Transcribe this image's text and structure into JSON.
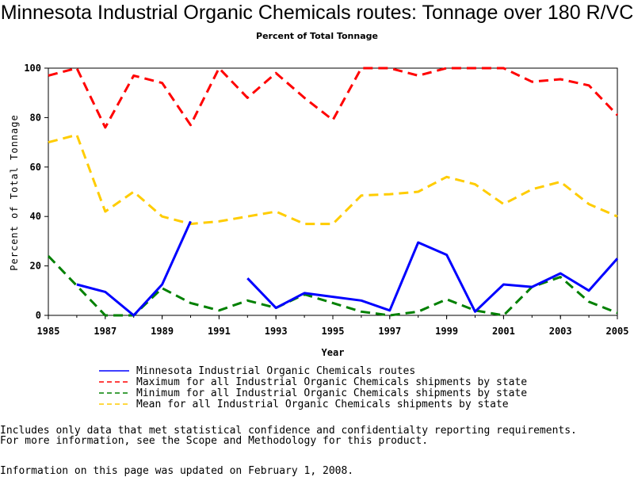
{
  "chart_data": {
    "type": "line",
    "title": "Minnesota Industrial Organic Chemicals routes: Tonnage over 180 R/VC",
    "subtitle": "Percent of Total Tonnage",
    "xlabel": "Year",
    "ylabel": "Percent of Total Tonnage",
    "xlim": [
      1985,
      2005
    ],
    "ylim": [
      0,
      100
    ],
    "x_ticks": [
      "1985",
      "1987",
      "1989",
      "1991",
      "1993",
      "1995",
      "1997",
      "1999",
      "2001",
      "2003",
      "2005"
    ],
    "y_ticks": [
      "0",
      "20",
      "40",
      "60",
      "80",
      "100"
    ],
    "grid": false,
    "legend_position": "bottom",
    "x": [
      1985,
      1986,
      1987,
      1988,
      1989,
      1990,
      1991,
      1992,
      1993,
      1994,
      1995,
      1996,
      1997,
      1998,
      1999,
      2000,
      2001,
      2002,
      2003,
      2004,
      2005
    ],
    "series": [
      {
        "name": "Minnesota Industrial Organic Chemicals routes",
        "color": "#0000ff",
        "style": "solid",
        "values": [
          null,
          12.5,
          9.5,
          0,
          12.5,
          38,
          null,
          15,
          3,
          9,
          7.5,
          6,
          2,
          29.5,
          24.5,
          1.5,
          12.5,
          11.5,
          17,
          10,
          23
        ]
      },
      {
        "name": "Maximum for all Industrial Organic Chemicals shipments by state",
        "color": "#ff0000",
        "style": "dashed",
        "values": [
          97,
          100,
          76,
          97,
          94,
          77,
          100,
          88,
          98,
          88,
          79,
          100,
          100,
          97,
          100,
          100,
          100,
          94.5,
          95.5,
          93,
          81
        ]
      },
      {
        "name": "Minimum for all Industrial Organic Chemicals shipments by state",
        "color": "#008000",
        "style": "dashed",
        "values": [
          24,
          12,
          0,
          0,
          11,
          5,
          2,
          6,
          3,
          8.5,
          5,
          1.5,
          0,
          1.5,
          6.5,
          2,
          0,
          11.5,
          15.5,
          5.5,
          1
        ]
      },
      {
        "name": "Mean for all Industrial Organic Chemicals shipments by state",
        "color": "#ffcc00",
        "style": "dashed",
        "values": [
          70,
          73,
          42,
          50,
          40,
          37,
          38,
          40,
          42,
          37,
          37,
          48.5,
          49,
          50,
          56,
          53,
          45,
          51,
          54,
          45,
          40
        ]
      }
    ]
  },
  "notes": {
    "line1": "Includes only data that met statistical confidence and confidentialty reporting requirements.",
    "line2": "For more information, see the Scope and Methodology for this product.",
    "line3": "Information on this page was updated on February 1, 2008."
  }
}
